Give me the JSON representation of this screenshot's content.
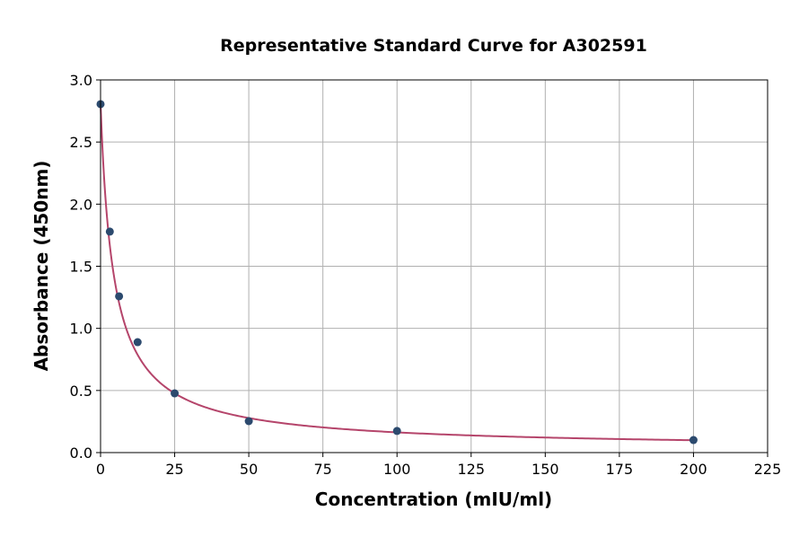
{
  "chart_data": {
    "type": "scatter",
    "title": "Representative Standard Curve for A302591",
    "xlabel": "Concentration (mIU/ml)",
    "ylabel": "Absorbance (450nm)",
    "xlim": [
      0,
      225
    ],
    "ylim": [
      0,
      3.0
    ],
    "xticks": [
      "0",
      "25",
      "50",
      "75",
      "100",
      "125",
      "150",
      "175",
      "200",
      "225"
    ],
    "yticks": [
      "0.0",
      "0.5",
      "1.0",
      "1.5",
      "2.0",
      "2.5",
      "3.0"
    ],
    "grid": true,
    "points": [
      {
        "x": 0,
        "y": 2.805
      },
      {
        "x": 3.125,
        "y": 1.779
      },
      {
        "x": 6.25,
        "y": 1.258
      },
      {
        "x": 12.5,
        "y": 0.889
      },
      {
        "x": 25,
        "y": 0.477
      },
      {
        "x": 50,
        "y": 0.253
      },
      {
        "x": 100,
        "y": 0.174
      },
      {
        "x": 200,
        "y": 0.101
      }
    ],
    "fit_curve": true,
    "colors": {
      "point": "#2c4a6e",
      "curve": "#b5456b",
      "grid": "#b0b0b0"
    }
  }
}
